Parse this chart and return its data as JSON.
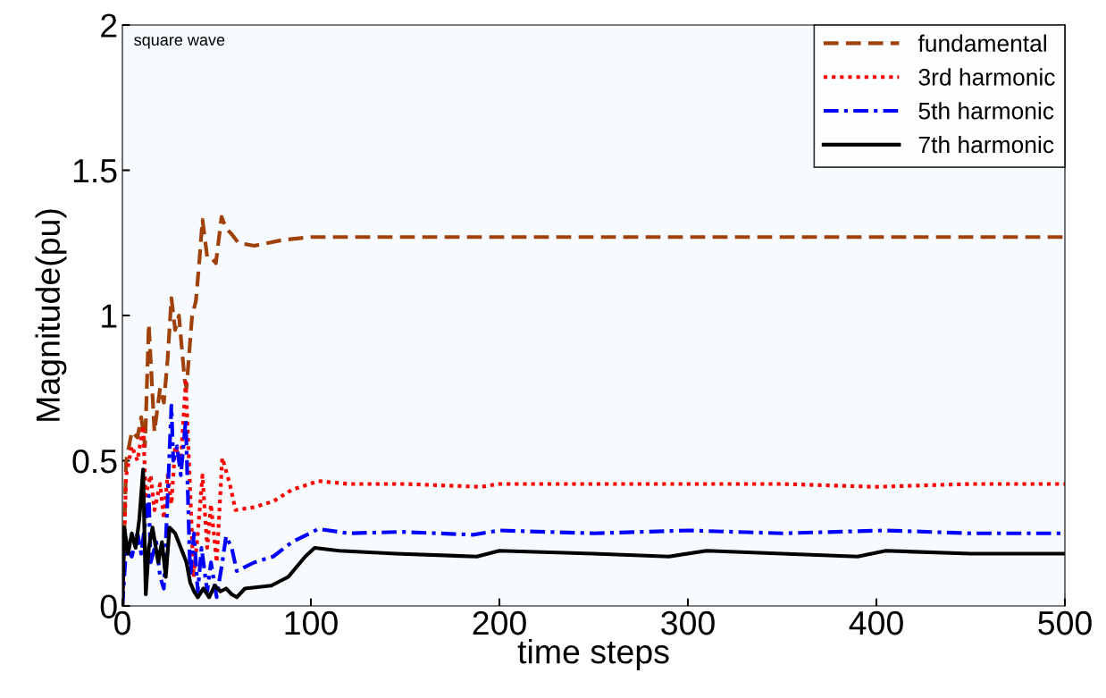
{
  "chart_data": {
    "type": "line",
    "xlabel": "time steps",
    "ylabel": "Magnitude(pu)",
    "annotations": [
      "square wave"
    ],
    "xlim": [
      0,
      500
    ],
    "ylim": [
      0,
      2
    ],
    "xticks": [
      0,
      100,
      200,
      300,
      400,
      500
    ],
    "yticks": [
      0,
      0.5,
      1,
      1.5,
      2
    ],
    "grid": false,
    "legend": "top right",
    "series": [
      {
        "name": "fundamental",
        "color": "#a0400a",
        "line_style": "dashed",
        "x": [
          0,
          2,
          5,
          8,
          10,
          12,
          14,
          17,
          20,
          22,
          24,
          26,
          28,
          30,
          33,
          34,
          37,
          39,
          41,
          42.5,
          45,
          47,
          49.6,
          52.6,
          55,
          58,
          61.5,
          70,
          85,
          100,
          150,
          200,
          250,
          300,
          350,
          400,
          450,
          500
        ],
        "values": [
          0,
          0.5,
          0.6,
          0.58,
          0.65,
          0.55,
          0.97,
          0.6,
          0.75,
          0.7,
          0.85,
          1.06,
          0.95,
          1.0,
          0.78,
          0.75,
          1.0,
          1.05,
          1.2,
          1.33,
          1.2,
          1.2,
          1.18,
          1.34,
          1.3,
          1.28,
          1.25,
          1.24,
          1.26,
          1.27,
          1.27,
          1.27,
          1.27,
          1.27,
          1.27,
          1.27,
          1.27,
          1.27
        ]
      },
      {
        "name": "3rd harmonic",
        "color": "#ff0000",
        "line_style": "dotted",
        "x": [
          0,
          2,
          5,
          8,
          11,
          12.4,
          15,
          17,
          20,
          22,
          24,
          26,
          28,
          31,
          33.6,
          37.8,
          40,
          42.5,
          45,
          47,
          50,
          53,
          57,
          60,
          70,
          80,
          90,
          104,
          120,
          150,
          190,
          200,
          250,
          300,
          350,
          400,
          450,
          500
        ],
        "values": [
          0,
          0.45,
          0.55,
          0.5,
          0.62,
          0.38,
          0.45,
          0.33,
          0.42,
          0.3,
          0.45,
          0.35,
          0.55,
          0.5,
          0.77,
          0.1,
          0.25,
          0.45,
          0.2,
          0.35,
          0.15,
          0.51,
          0.42,
          0.33,
          0.34,
          0.36,
          0.4,
          0.43,
          0.42,
          0.42,
          0.41,
          0.42,
          0.42,
          0.42,
          0.42,
          0.41,
          0.42,
          0.42
        ]
      },
      {
        "name": "5th harmonic",
        "color": "#0000ff",
        "line_style": "dashdot",
        "x": [
          0,
          2,
          5,
          8,
          10,
          14,
          15,
          18,
          20,
          22,
          26,
          27,
          29,
          31,
          33.6,
          36,
          38,
          40,
          42,
          45,
          47,
          50,
          53,
          55,
          58,
          60.7,
          70,
          80,
          90,
          104,
          120,
          148,
          186,
          200,
          250,
          300,
          350,
          405,
          450,
          500
        ],
        "values": [
          0,
          0.2,
          0.17,
          0.25,
          0.18,
          0.38,
          0.15,
          0.22,
          0.1,
          0.06,
          0.69,
          0.5,
          0.55,
          0.45,
          0.64,
          0.1,
          0.25,
          0.05,
          0.2,
          0.05,
          0.15,
          0.03,
          0.15,
          0.24,
          0.2,
          0.12,
          0.15,
          0.17,
          0.22,
          0.265,
          0.25,
          0.255,
          0.245,
          0.26,
          0.25,
          0.26,
          0.25,
          0.26,
          0.25,
          0.25
        ]
      },
      {
        "name": "7th harmonic",
        "color": "#000000",
        "line_style": "solid",
        "x": [
          0,
          1,
          3,
          5,
          7,
          9,
          11,
          12.4,
          14,
          16,
          19,
          21,
          23,
          25,
          28,
          31,
          34,
          36,
          38,
          40,
          43,
          46,
          49,
          52,
          55,
          58,
          60.7,
          65,
          79,
          88,
          97,
          102,
          115,
          145,
          188,
          200,
          250,
          290,
          310,
          350,
          390,
          405,
          450,
          500
        ],
        "values": [
          0,
          0.27,
          0.18,
          0.25,
          0.2,
          0.3,
          0.47,
          0.04,
          0.2,
          0.27,
          0.15,
          0.22,
          0.1,
          0.27,
          0.25,
          0.2,
          0.15,
          0.08,
          0.05,
          0.03,
          0.06,
          0.03,
          0.07,
          0.05,
          0.06,
          0.04,
          0.03,
          0.06,
          0.07,
          0.1,
          0.17,
          0.2,
          0.19,
          0.18,
          0.17,
          0.19,
          0.18,
          0.17,
          0.19,
          0.18,
          0.17,
          0.19,
          0.18,
          0.18
        ]
      }
    ]
  }
}
